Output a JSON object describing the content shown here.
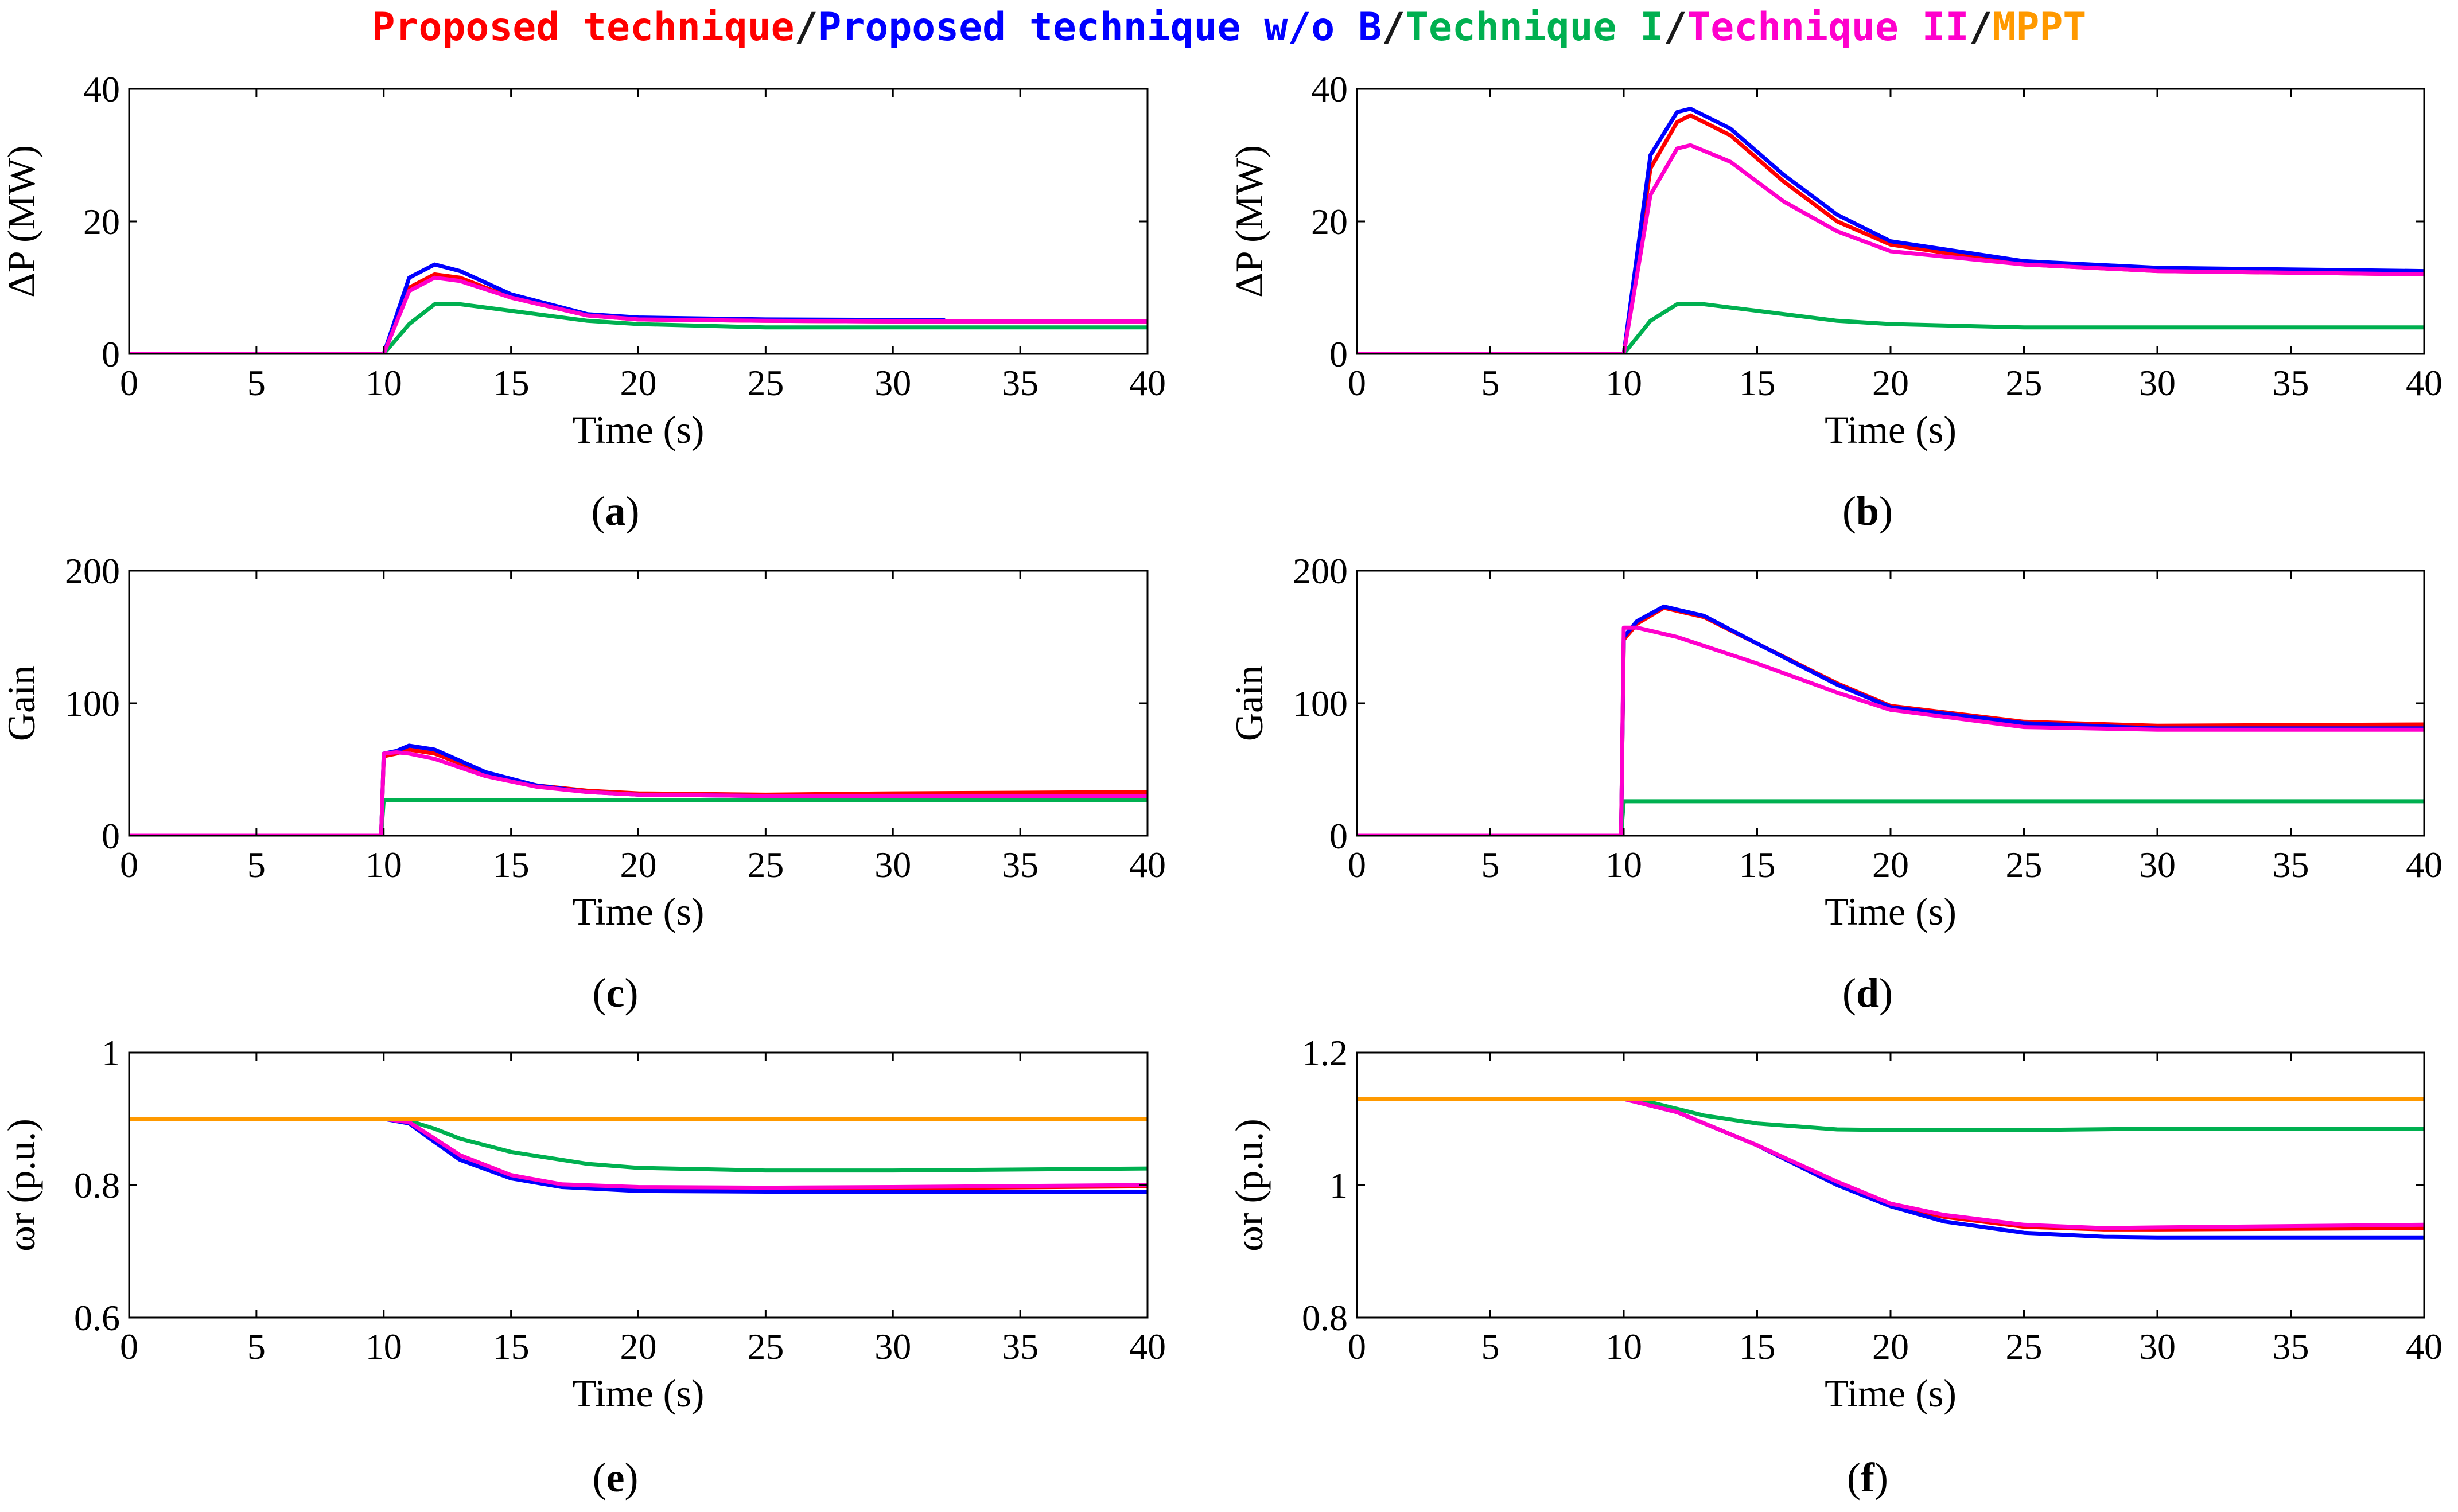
{
  "legend": {
    "separator": "/",
    "items": [
      {
        "label": "Proposed technique",
        "color": "#ff0000"
      },
      {
        "label": "Proposed technique w/o B",
        "color": "#0000ff"
      },
      {
        "label": "Technique I",
        "color": "#00b050"
      },
      {
        "label": "Technique II",
        "color": "#ff00cc"
      },
      {
        "label": "MPPT",
        "color": "#ff9900"
      }
    ]
  },
  "chart_data": [
    {
      "panel": "a",
      "type": "line",
      "title": "",
      "xlabel": "Time (s)",
      "ylabel": "ΔP (MW)",
      "xlim": [
        0,
        40
      ],
      "ylim": [
        0,
        40
      ],
      "xticks": [
        0,
        5,
        10,
        15,
        20,
        25,
        30,
        35,
        40
      ],
      "yticks": [
        0,
        20,
        40
      ],
      "series": [
        {
          "name": "Proposed technique",
          "color": "#ff0000",
          "x": [
            0,
            10,
            11,
            12,
            13,
            15,
            18,
            20,
            25,
            30,
            40
          ],
          "y": [
            0,
            0,
            10,
            12,
            11.5,
            8.5,
            5.8,
            5.2,
            5,
            4.9,
            4.9
          ]
        },
        {
          "name": "Proposed technique w/o B",
          "color": "#0000ff",
          "x": [
            0,
            10,
            11,
            12,
            13,
            15,
            18,
            20,
            25,
            32
          ],
          "y": [
            0,
            0,
            11.5,
            13.5,
            12.5,
            9,
            6,
            5.5,
            5.2,
            5.1
          ]
        },
        {
          "name": "Technique I",
          "color": "#00b050",
          "x": [
            0,
            10,
            11,
            12,
            13,
            15,
            18,
            20,
            25,
            30,
            40
          ],
          "y": [
            0,
            0,
            4.5,
            7.5,
            7.5,
            6.5,
            5,
            4.5,
            4,
            4,
            4
          ]
        },
        {
          "name": "Technique II",
          "color": "#ff00cc",
          "x": [
            0,
            10,
            11,
            12,
            13,
            15,
            18,
            20,
            25,
            30,
            40
          ],
          "y": [
            0,
            0,
            9.5,
            11.5,
            11,
            8.5,
            5.8,
            5.2,
            5,
            4.9,
            4.9
          ]
        }
      ]
    },
    {
      "panel": "b",
      "type": "line",
      "title": "",
      "xlabel": "Time (s)",
      "ylabel": "ΔP (MW)",
      "xlim": [
        0,
        40
      ],
      "ylim": [
        0,
        40
      ],
      "xticks": [
        0,
        5,
        10,
        15,
        20,
        25,
        30,
        35,
        40
      ],
      "yticks": [
        0,
        20,
        40
      ],
      "series": [
        {
          "name": "Proposed technique",
          "color": "#ff0000",
          "x": [
            0,
            10,
            11,
            12,
            12.5,
            14,
            16,
            18,
            20,
            25,
            30,
            40
          ],
          "y": [
            0,
            0,
            28,
            35,
            36,
            33,
            26,
            20,
            16.5,
            13.5,
            12.5,
            12
          ]
        },
        {
          "name": "Proposed technique w/o B",
          "color": "#0000ff",
          "x": [
            0,
            10,
            11,
            12,
            12.5,
            14,
            16,
            18,
            20,
            25,
            30,
            40
          ],
          "y": [
            0,
            0,
            30,
            36.5,
            37,
            34,
            27,
            21,
            17,
            14,
            13,
            12.5
          ]
        },
        {
          "name": "Technique I",
          "color": "#00b050",
          "x": [
            0,
            10,
            11,
            12,
            13,
            15,
            18,
            20,
            25,
            30,
            40
          ],
          "y": [
            0,
            0,
            5,
            7.5,
            7.5,
            6.5,
            5,
            4.5,
            4,
            4,
            4
          ]
        },
        {
          "name": "Technique II",
          "color": "#ff00cc",
          "x": [
            0,
            10,
            11,
            12,
            12.5,
            14,
            16,
            18,
            20,
            25,
            30,
            40
          ],
          "y": [
            0,
            0,
            24,
            31,
            31.5,
            29,
            23,
            18.5,
            15.5,
            13.5,
            12.5,
            12
          ]
        }
      ]
    },
    {
      "panel": "c",
      "type": "line",
      "title": "",
      "xlabel": "Time (s)",
      "ylabel": "Gain",
      "xlim": [
        0,
        40
      ],
      "ylim": [
        0,
        200
      ],
      "xticks": [
        0,
        5,
        10,
        15,
        20,
        25,
        30,
        35,
        40
      ],
      "yticks": [
        0,
        100,
        200
      ],
      "series": [
        {
          "name": "Proposed technique",
          "color": "#ff0000",
          "x": [
            0,
            9.9,
            10,
            10.5,
            11,
            12,
            14,
            16,
            18,
            20,
            25,
            30,
            40
          ],
          "y": [
            0,
            0,
            60,
            62,
            65,
            62,
            47,
            38,
            34,
            32,
            31,
            32,
            33
          ]
        },
        {
          "name": "Proposed technique w/o B",
          "color": "#0000ff",
          "x": [
            0,
            9.9,
            10,
            10.5,
            11,
            12,
            14,
            16,
            18,
            20,
            25,
            30,
            40
          ],
          "y": [
            0,
            0,
            62,
            64,
            68,
            65,
            48,
            38,
            33,
            31,
            30,
            30,
            30
          ]
        },
        {
          "name": "Technique I",
          "color": "#00b050",
          "x": [
            0,
            9.9,
            10,
            40
          ],
          "y": [
            0,
            0,
            27,
            27
          ]
        },
        {
          "name": "Technique II",
          "color": "#ff00cc",
          "x": [
            0,
            9.9,
            10,
            10.5,
            11,
            12,
            14,
            16,
            18,
            20,
            25,
            30,
            40
          ],
          "y": [
            0,
            0,
            62,
            63,
            62,
            58,
            45,
            37,
            33,
            31,
            30,
            30,
            30
          ]
        }
      ]
    },
    {
      "panel": "d",
      "type": "line",
      "title": "",
      "xlabel": "Time (s)",
      "ylabel": "Gain",
      "xlim": [
        0,
        40
      ],
      "ylim": [
        0,
        200
      ],
      "xticks": [
        0,
        5,
        10,
        15,
        20,
        25,
        30,
        35,
        40
      ],
      "yticks": [
        0,
        100,
        200
      ],
      "series": [
        {
          "name": "Proposed technique",
          "color": "#ff0000",
          "x": [
            0,
            9.9,
            10,
            10.5,
            11.5,
            13,
            15,
            18,
            20,
            25,
            30,
            40
          ],
          "y": [
            0,
            0,
            148,
            160,
            172,
            165,
            145,
            115,
            98,
            86,
            83,
            84
          ]
        },
        {
          "name": "Proposed technique w/o B",
          "color": "#0000ff",
          "x": [
            0,
            9.9,
            10,
            10.5,
            11.5,
            13,
            15,
            18,
            20,
            25,
            30,
            40
          ],
          "y": [
            0,
            0,
            150,
            162,
            173,
            166,
            145,
            114,
            97,
            85,
            81,
            81
          ]
        },
        {
          "name": "Technique I",
          "color": "#00b050",
          "x": [
            0,
            9.9,
            10,
            40
          ],
          "y": [
            0,
            0,
            26,
            26
          ]
        },
        {
          "name": "Technique II",
          "color": "#ff00cc",
          "x": [
            0,
            9.9,
            10,
            10.5,
            12,
            15,
            18,
            20,
            25,
            30,
            40
          ],
          "y": [
            0,
            0,
            157,
            157,
            150,
            130,
            108,
            95,
            82,
            80,
            80
          ]
        }
      ]
    },
    {
      "panel": "e",
      "type": "line",
      "title": "",
      "xlabel": "Time (s)",
      "ylabel": "ωr (p.u.)",
      "xlim": [
        0,
        40
      ],
      "ylim": [
        0.6,
        1.0
      ],
      "xticks": [
        0,
        5,
        10,
        15,
        20,
        25,
        30,
        35,
        40
      ],
      "yticks": [
        0.6,
        0.8,
        1.0
      ],
      "series": [
        {
          "name": "Proposed technique",
          "color": "#ff0000",
          "x": [
            0,
            10,
            11,
            12,
            13,
            15,
            17,
            20,
            25,
            30,
            40
          ],
          "y": [
            0.9,
            0.9,
            0.895,
            0.87,
            0.845,
            0.815,
            0.8,
            0.795,
            0.795,
            0.795,
            0.798
          ]
        },
        {
          "name": "Proposed technique w/o B",
          "color": "#0000ff",
          "x": [
            0,
            10,
            11,
            12,
            13,
            15,
            17,
            20,
            25,
            30,
            40
          ],
          "y": [
            0.9,
            0.9,
            0.893,
            0.865,
            0.838,
            0.81,
            0.797,
            0.791,
            0.79,
            0.79,
            0.79
          ]
        },
        {
          "name": "Technique I",
          "color": "#00b050",
          "x": [
            0,
            10,
            11,
            12,
            13,
            15,
            18,
            20,
            25,
            30,
            40
          ],
          "y": [
            0.9,
            0.9,
            0.897,
            0.885,
            0.87,
            0.85,
            0.832,
            0.826,
            0.822,
            0.822,
            0.825
          ]
        },
        {
          "name": "Technique II",
          "color": "#ff00cc",
          "x": [
            0,
            10,
            11,
            12,
            13,
            15,
            17,
            20,
            25,
            30,
            40
          ],
          "y": [
            0.9,
            0.9,
            0.895,
            0.87,
            0.845,
            0.815,
            0.801,
            0.797,
            0.796,
            0.797,
            0.8
          ]
        },
        {
          "name": "MPPT",
          "color": "#ff9900",
          "x": [
            0,
            40
          ],
          "y": [
            0.9,
            0.9
          ]
        }
      ]
    },
    {
      "panel": "f",
      "type": "line",
      "title": "",
      "xlabel": "Time (s)",
      "ylabel": "ωr (p.u.)",
      "xlim": [
        0,
        40
      ],
      "ylim": [
        0.8,
        1.2
      ],
      "xticks": [
        0,
        5,
        10,
        15,
        20,
        25,
        30,
        35,
        40
      ],
      "yticks": [
        0.8,
        1.0,
        1.2
      ],
      "series": [
        {
          "name": "Proposed technique",
          "color": "#ff0000",
          "x": [
            0,
            10,
            12,
            15,
            18,
            20,
            22,
            25,
            28,
            30,
            40
          ],
          "y": [
            1.13,
            1.13,
            1.11,
            1.06,
            1.0,
            0.97,
            0.952,
            0.937,
            0.933,
            0.933,
            0.935
          ]
        },
        {
          "name": "Proposed technique w/o B",
          "color": "#0000ff",
          "x": [
            0,
            10,
            12,
            15,
            18,
            20,
            22,
            25,
            28,
            30,
            40
          ],
          "y": [
            1.13,
            1.13,
            1.11,
            1.06,
            1.0,
            0.968,
            0.945,
            0.928,
            0.922,
            0.921,
            0.921
          ]
        },
        {
          "name": "Technique I",
          "color": "#00b050",
          "x": [
            0,
            10,
            11,
            12,
            13,
            15,
            18,
            20,
            25,
            30,
            40
          ],
          "y": [
            1.13,
            1.13,
            1.125,
            1.115,
            1.105,
            1.093,
            1.084,
            1.083,
            1.083,
            1.085,
            1.085
          ]
        },
        {
          "name": "Technique II",
          "color": "#ff00cc",
          "x": [
            0,
            10,
            12,
            15,
            18,
            20,
            22,
            25,
            28,
            30,
            40
          ],
          "y": [
            1.13,
            1.13,
            1.11,
            1.06,
            1.005,
            0.972,
            0.955,
            0.94,
            0.935,
            0.936,
            0.94
          ]
        },
        {
          "name": "MPPT",
          "color": "#ff9900",
          "x": [
            0,
            40
          ],
          "y": [
            1.13,
            1.13
          ]
        }
      ]
    }
  ]
}
